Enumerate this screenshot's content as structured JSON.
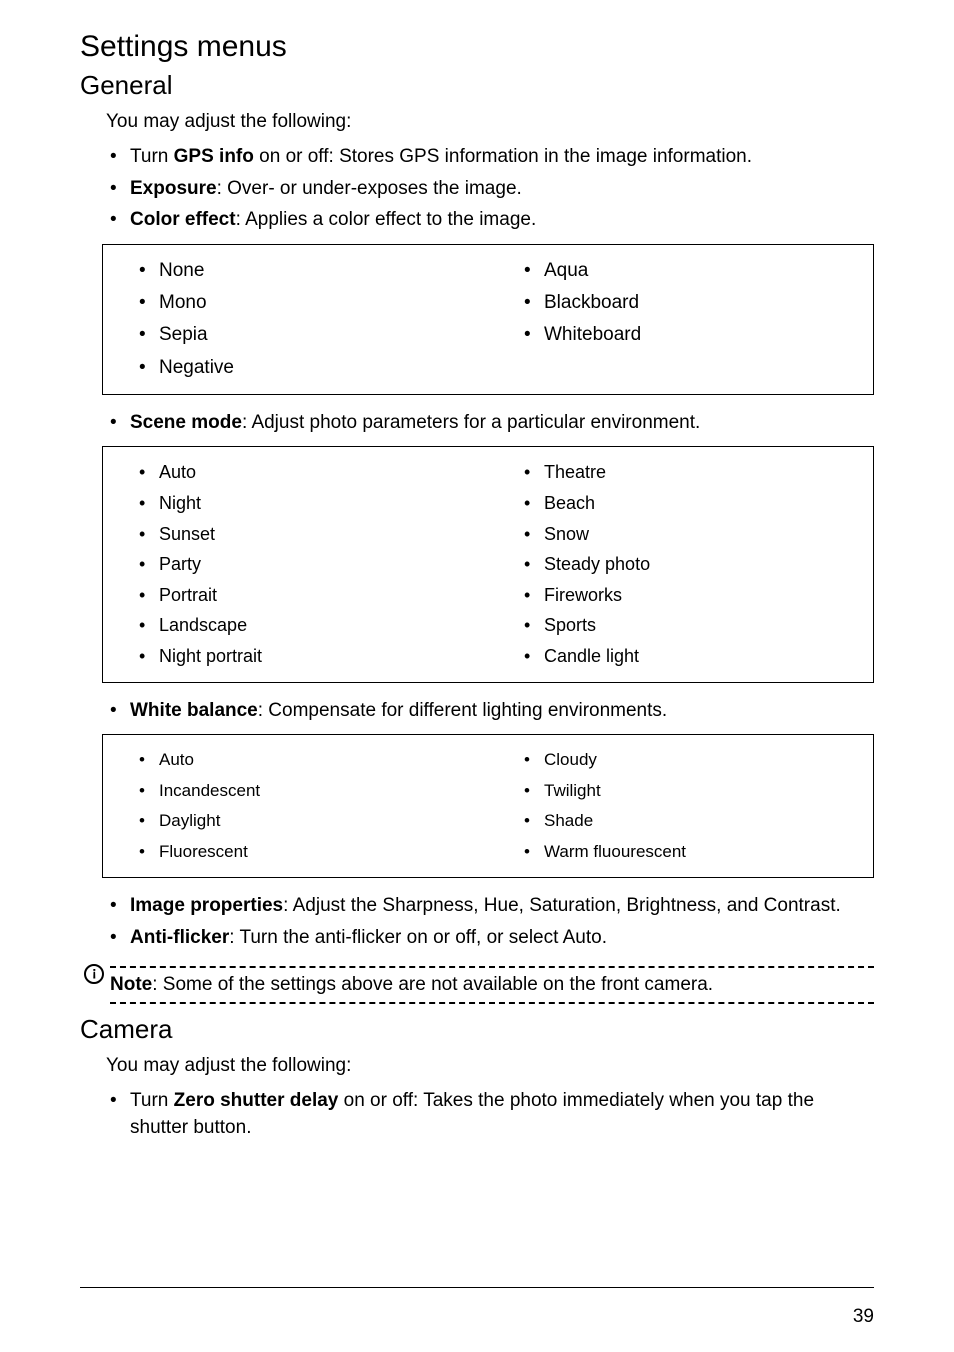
{
  "settingsMenus": {
    "title": "Settings menus"
  },
  "general": {
    "title": "General",
    "lead": "You may adjust the following:",
    "items": {
      "gps": {
        "prefix": "Turn ",
        "bold": "GPS info",
        "rest": " on or off: Stores GPS information in the image information."
      },
      "exposure": {
        "bold": "Exposure",
        "rest": ": Over- or under-exposes the image."
      },
      "coloreffect": {
        "bold": "Color effect",
        "rest": ": Applies a color effect to the image."
      },
      "scenemode": {
        "bold": "Scene mode",
        "rest": ": Adjust photo parameters for a particular environment."
      },
      "whitebalance": {
        "bold": "White balance",
        "rest": ": Compensate for different lighting environments."
      },
      "imageprops": {
        "bold": "Image properties",
        "rest": ": Adjust the Sharpness, Hue, Saturation, Brightness, and Contrast."
      },
      "antiflicker": {
        "bold": "Anti-flicker",
        "rest": ": Turn the anti-flicker on or off, or select Auto."
      }
    },
    "colorEffectOptions": {
      "left": [
        "None",
        "Mono",
        "Sepia",
        "Negative"
      ],
      "right": [
        "Aqua",
        "Blackboard",
        "Whiteboard"
      ]
    },
    "sceneModeOptions": {
      "left": [
        "Auto",
        "Night",
        "Sunset",
        "Party",
        "Portrait",
        "Landscape",
        "Night portrait"
      ],
      "right": [
        "Theatre",
        "Beach",
        "Snow",
        "Steady photo",
        "Fireworks",
        "Sports",
        "Candle light"
      ]
    },
    "whiteBalanceOptions": {
      "left": [
        "Auto",
        "Incandescent",
        "Daylight",
        "Fluorescent"
      ],
      "right": [
        "Cloudy",
        "Twilight",
        "Shade",
        "Warm fluourescent"
      ]
    },
    "note": {
      "bold": "Note",
      "rest": ": Some of the settings above are not available on the front camera."
    }
  },
  "camera": {
    "title": "Camera",
    "lead": "You may adjust the following:",
    "items": {
      "zeroshutter": {
        "prefix": "Turn ",
        "bold": "Zero shutter delay",
        "rest": " on or off: Takes the photo immediately when you tap the shutter button."
      }
    }
  },
  "pageNumber": "39"
}
